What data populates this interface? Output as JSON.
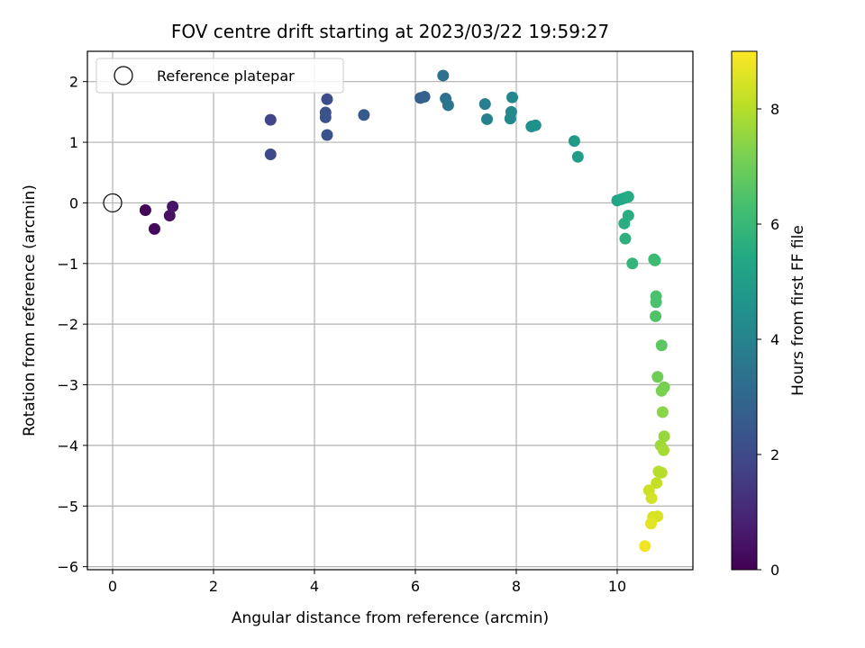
{
  "chart_data": {
    "type": "scatter",
    "title": "FOV centre drift starting at 2023/03/22 19:59:27",
    "xlabel": "Angular distance from reference (arcmin)",
    "ylabel": "Rotation from reference (arcmin)",
    "xlim": [
      -0.5,
      11.5
    ],
    "ylim": [
      -6.05,
      2.5
    ],
    "xticks": [
      0,
      2,
      4,
      6,
      8,
      10
    ],
    "xtick_labels": [
      "0",
      "2",
      "4",
      "6",
      "8",
      "10"
    ],
    "yticks": [
      -6,
      -5,
      -4,
      -3,
      -2,
      -1,
      0,
      1,
      2
    ],
    "ytick_labels": [
      "−6",
      "−5",
      "−4",
      "−3",
      "−2",
      "−1",
      "0",
      "1",
      "2"
    ],
    "grid": true,
    "legend": {
      "placement": "top-left",
      "entries": [
        "Reference platepar"
      ]
    },
    "reference_point": {
      "x": 0,
      "y": 0,
      "label": "Reference platepar"
    },
    "colorbar": {
      "label": "Hours from first FF file",
      "min": 0,
      "max": 9,
      "ticks": [
        0,
        2,
        4,
        6,
        8
      ],
      "tick_labels": [
        "0",
        "2",
        "4",
        "6",
        "8"
      ],
      "colormap": "viridis"
    },
    "points": [
      {
        "x": 0.65,
        "y": -0.12,
        "c": 0.1
      },
      {
        "x": 0.83,
        "y": -0.43,
        "c": 0.2
      },
      {
        "x": 1.13,
        "y": -0.21,
        "c": 0.4
      },
      {
        "x": 1.19,
        "y": -0.06,
        "c": 0.5
      },
      {
        "x": 3.13,
        "y": 1.37,
        "c": 1.9
      },
      {
        "x": 3.13,
        "y": 0.8,
        "c": 2.0
      },
      {
        "x": 4.25,
        "y": 1.71,
        "c": 2.1
      },
      {
        "x": 4.22,
        "y": 1.49,
        "c": 2.2
      },
      {
        "x": 4.22,
        "y": 1.41,
        "c": 2.3
      },
      {
        "x": 4.25,
        "y": 1.12,
        "c": 2.3
      },
      {
        "x": 4.98,
        "y": 1.45,
        "c": 2.5
      },
      {
        "x": 6.1,
        "y": 1.73,
        "c": 2.7
      },
      {
        "x": 6.18,
        "y": 1.75,
        "c": 2.8
      },
      {
        "x": 6.55,
        "y": 2.1,
        "c": 3.3
      },
      {
        "x": 6.6,
        "y": 1.72,
        "c": 3.4
      },
      {
        "x": 6.65,
        "y": 1.61,
        "c": 3.5
      },
      {
        "x": 7.38,
        "y": 1.63,
        "c": 3.8
      },
      {
        "x": 7.42,
        "y": 1.38,
        "c": 3.9
      },
      {
        "x": 7.92,
        "y": 1.74,
        "c": 4.1
      },
      {
        "x": 7.9,
        "y": 1.5,
        "c": 4.2
      },
      {
        "x": 7.88,
        "y": 1.39,
        "c": 4.2
      },
      {
        "x": 8.3,
        "y": 1.26,
        "c": 4.5
      },
      {
        "x": 8.38,
        "y": 1.28,
        "c": 4.5
      },
      {
        "x": 9.15,
        "y": 1.02,
        "c": 4.9
      },
      {
        "x": 9.22,
        "y": 0.76,
        "c": 5.0
      },
      {
        "x": 10.0,
        "y": 0.04,
        "c": 5.3
      },
      {
        "x": 10.08,
        "y": 0.06,
        "c": 5.4
      },
      {
        "x": 10.15,
        "y": 0.08,
        "c": 5.4
      },
      {
        "x": 10.22,
        "y": 0.1,
        "c": 5.5
      },
      {
        "x": 10.14,
        "y": -0.34,
        "c": 5.6
      },
      {
        "x": 10.22,
        "y": -0.21,
        "c": 5.6
      },
      {
        "x": 10.16,
        "y": -0.59,
        "c": 5.7
      },
      {
        "x": 10.3,
        "y": -1.0,
        "c": 5.9
      },
      {
        "x": 10.73,
        "y": -0.93,
        "c": 6.1
      },
      {
        "x": 10.75,
        "y": -0.95,
        "c": 6.1
      },
      {
        "x": 10.77,
        "y": -1.54,
        "c": 6.4
      },
      {
        "x": 10.77,
        "y": -1.64,
        "c": 6.4
      },
      {
        "x": 10.76,
        "y": -1.87,
        "c": 6.5
      },
      {
        "x": 10.88,
        "y": -2.35,
        "c": 6.7
      },
      {
        "x": 10.8,
        "y": -2.87,
        "c": 7.0
      },
      {
        "x": 10.93,
        "y": -3.04,
        "c": 7.1
      },
      {
        "x": 10.88,
        "y": -3.1,
        "c": 7.2
      },
      {
        "x": 10.9,
        "y": -3.45,
        "c": 7.4
      },
      {
        "x": 10.93,
        "y": -3.85,
        "c": 7.6
      },
      {
        "x": 10.86,
        "y": -4.0,
        "c": 7.7
      },
      {
        "x": 10.92,
        "y": -4.08,
        "c": 7.8
      },
      {
        "x": 10.82,
        "y": -4.43,
        "c": 8.0
      },
      {
        "x": 10.88,
        "y": -4.45,
        "c": 8.0
      },
      {
        "x": 10.78,
        "y": -4.62,
        "c": 8.2
      },
      {
        "x": 10.63,
        "y": -4.74,
        "c": 8.3
      },
      {
        "x": 10.68,
        "y": -4.87,
        "c": 8.4
      },
      {
        "x": 10.71,
        "y": -5.18,
        "c": 8.5
      },
      {
        "x": 10.8,
        "y": -5.17,
        "c": 8.5
      },
      {
        "x": 10.67,
        "y": -5.29,
        "c": 8.6
      },
      {
        "x": 10.55,
        "y": -5.66,
        "c": 8.8
      }
    ]
  }
}
